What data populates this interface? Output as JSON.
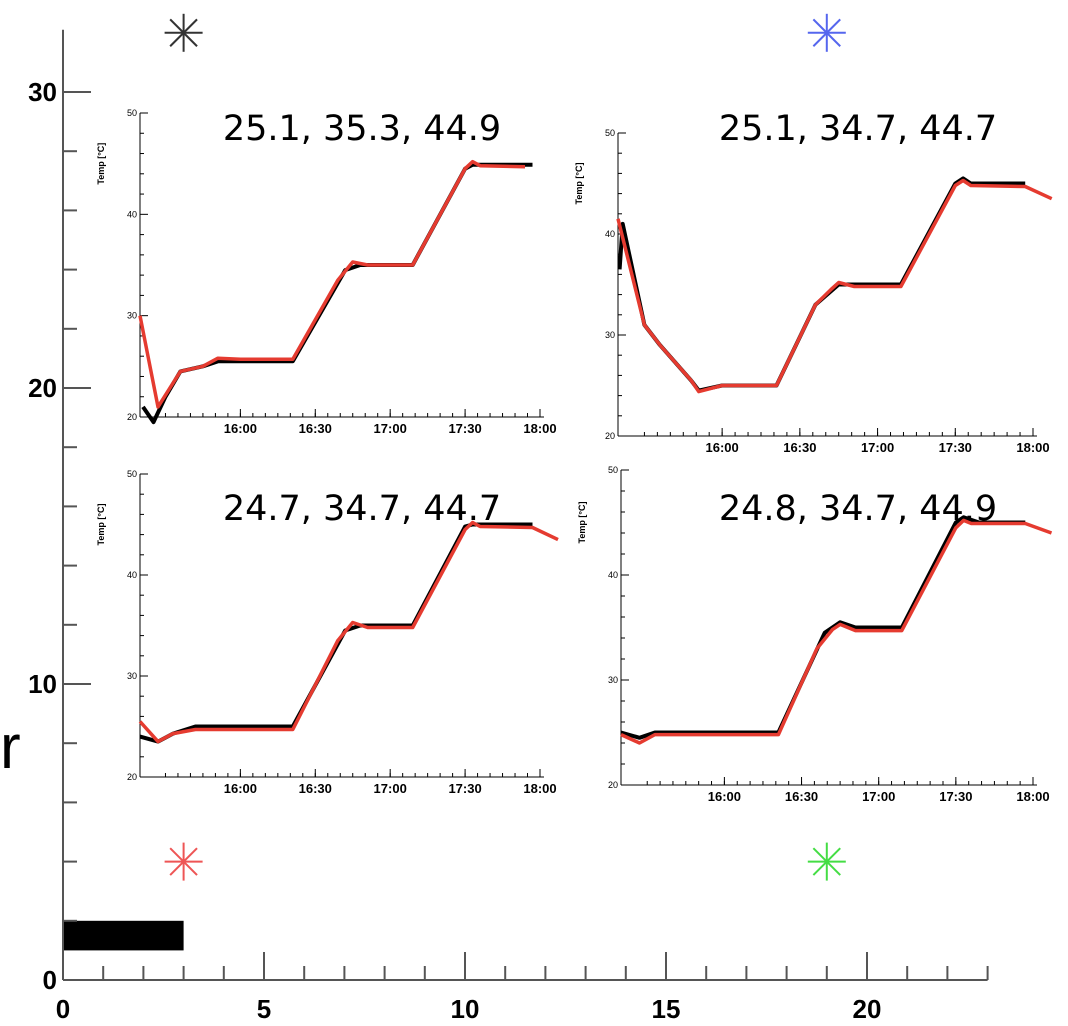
{
  "chart_data": {
    "type": "scatter",
    "xlabel": "",
    "ylabel": "r",
    "xlim": [
      0,
      23
    ],
    "ylim": [
      0,
      32
    ],
    "x_ticks": [
      "0",
      "5",
      "10",
      "15",
      "20"
    ],
    "y_ticks": [
      "0",
      "10",
      "20",
      "30"
    ],
    "markers": [
      {
        "x": 3,
        "y": 32,
        "color": "#333333",
        "symbol": "asterisk"
      },
      {
        "x": 19,
        "y": 32,
        "color": "#5566ee",
        "symbol": "asterisk"
      },
      {
        "x": 3,
        "y": 4,
        "color": "#ee5555",
        "symbol": "asterisk"
      },
      {
        "x": 19,
        "y": 4,
        "color": "#44dd44",
        "symbol": "asterisk"
      }
    ],
    "bar": {
      "x_from": 0,
      "x_to": 3,
      "y_from": 1,
      "y_to": 2,
      "color": "#000000"
    },
    "insets": [
      {
        "title": "25.1, 35.3, 44.9",
        "ylabel": "Temp [°C]",
        "ylim": [
          20,
          50
        ],
        "y_ticks": [
          "20",
          "30",
          "40",
          "50"
        ],
        "x_ticks": [
          "16:00",
          "16:30",
          "17:00",
          "17:30",
          "18:00"
        ],
        "measured": [
          [
            15.35,
            21.0
          ],
          [
            15.42,
            19.5
          ],
          [
            15.5,
            22.0
          ],
          [
            15.6,
            24.5
          ],
          [
            15.75,
            25.0
          ],
          [
            15.85,
            25.5
          ],
          [
            16.0,
            25.5
          ],
          [
            16.35,
            25.5
          ],
          [
            16.7,
            34.5
          ],
          [
            16.8,
            35.0
          ],
          [
            16.9,
            35.0
          ],
          [
            17.15,
            35.0
          ],
          [
            17.5,
            44.5
          ],
          [
            17.55,
            44.9
          ],
          [
            17.65,
            44.9
          ],
          [
            17.95,
            44.9
          ]
        ],
        "model": [
          [
            15.33,
            30.0
          ],
          [
            15.45,
            21.0
          ],
          [
            15.6,
            24.5
          ],
          [
            15.75,
            25.0
          ],
          [
            15.85,
            25.8
          ],
          [
            16.0,
            25.7
          ],
          [
            16.35,
            25.7
          ],
          [
            16.65,
            33.5
          ],
          [
            16.75,
            35.3
          ],
          [
            16.85,
            35.0
          ],
          [
            17.15,
            35.0
          ],
          [
            17.5,
            44.5
          ],
          [
            17.55,
            45.2
          ],
          [
            17.6,
            44.8
          ],
          [
            17.9,
            44.7
          ]
        ]
      },
      {
        "title": "25.1, 34.7, 44.7",
        "ylabel": "Temp [°C]",
        "ylim": [
          20,
          50
        ],
        "y_ticks": [
          "20",
          "30",
          "40",
          "50"
        ],
        "x_ticks": [
          "16:00",
          "16:30",
          "17:00",
          "17:30",
          "18:00"
        ],
        "measured": [
          [
            15.34,
            36.5
          ],
          [
            15.36,
            41.0
          ],
          [
            15.5,
            31.0
          ],
          [
            15.6,
            29.0
          ],
          [
            15.8,
            25.5
          ],
          [
            15.85,
            24.5
          ],
          [
            16.0,
            25.0
          ],
          [
            16.35,
            25.0
          ],
          [
            16.6,
            33.0
          ],
          [
            16.75,
            35.0
          ],
          [
            16.85,
            35.0
          ],
          [
            17.15,
            35.0
          ],
          [
            17.5,
            45.0
          ],
          [
            17.55,
            45.5
          ],
          [
            17.6,
            45.0
          ],
          [
            17.95,
            45.0
          ]
        ],
        "model": [
          [
            15.33,
            41.5
          ],
          [
            15.5,
            31.0
          ],
          [
            15.6,
            29.0
          ],
          [
            15.8,
            25.5
          ],
          [
            15.85,
            24.4
          ],
          [
            16.0,
            25.0
          ],
          [
            16.35,
            25.0
          ],
          [
            16.6,
            33.0
          ],
          [
            16.7,
            34.5
          ],
          [
            16.75,
            35.2
          ],
          [
            16.85,
            34.8
          ],
          [
            17.15,
            34.8
          ],
          [
            17.5,
            44.8
          ],
          [
            17.55,
            45.3
          ],
          [
            17.6,
            44.8
          ],
          [
            17.95,
            44.7
          ],
          [
            18.12,
            43.5
          ]
        ]
      },
      {
        "title": "24.7, 34.7, 44.7",
        "ylabel": "Temp [°C]",
        "ylim": [
          20,
          50
        ],
        "y_ticks": [
          "20",
          "30",
          "40",
          "50"
        ],
        "x_ticks": [
          "16:00",
          "16:30",
          "17:00",
          "17:30",
          "18:00"
        ],
        "measured": [
          [
            15.33,
            24.0
          ],
          [
            15.45,
            23.5
          ],
          [
            15.55,
            24.3
          ],
          [
            15.7,
            25.0
          ],
          [
            16.0,
            25.0
          ],
          [
            16.35,
            25.0
          ],
          [
            16.7,
            34.5
          ],
          [
            16.8,
            35.0
          ],
          [
            16.9,
            35.0
          ],
          [
            17.15,
            35.0
          ],
          [
            17.5,
            44.8
          ],
          [
            17.55,
            45.0
          ],
          [
            17.65,
            45.0
          ],
          [
            17.95,
            45.0
          ]
        ],
        "model": [
          [
            15.33,
            25.5
          ],
          [
            15.45,
            23.5
          ],
          [
            15.55,
            24.3
          ],
          [
            15.7,
            24.7
          ],
          [
            16.0,
            24.7
          ],
          [
            16.35,
            24.7
          ],
          [
            16.65,
            33.5
          ],
          [
            16.75,
            35.3
          ],
          [
            16.85,
            34.8
          ],
          [
            17.15,
            34.8
          ],
          [
            17.5,
            44.5
          ],
          [
            17.55,
            45.2
          ],
          [
            17.6,
            44.8
          ],
          [
            17.95,
            44.7
          ],
          [
            18.12,
            43.5
          ]
        ]
      },
      {
        "title": "24.8, 34.7, 44.9",
        "ylabel": "Temp [°C]",
        "ylim": [
          20,
          50
        ],
        "y_ticks": [
          "20",
          "30",
          "40",
          "50"
        ],
        "x_ticks": [
          "16:00",
          "16:30",
          "17:00",
          "17:30",
          "18:00"
        ],
        "measured": [
          [
            15.33,
            25.0
          ],
          [
            15.45,
            24.5
          ],
          [
            15.55,
            25.0
          ],
          [
            16.0,
            25.0
          ],
          [
            16.35,
            25.0
          ],
          [
            16.65,
            34.5
          ],
          [
            16.75,
            35.5
          ],
          [
            16.85,
            35.0
          ],
          [
            17.15,
            35.0
          ],
          [
            17.5,
            45.0
          ],
          [
            17.55,
            45.5
          ],
          [
            17.65,
            45.0
          ],
          [
            17.95,
            45.0
          ]
        ],
        "model": [
          [
            15.33,
            24.8
          ],
          [
            15.45,
            24.0
          ],
          [
            15.55,
            24.8
          ],
          [
            16.0,
            24.8
          ],
          [
            16.35,
            24.8
          ],
          [
            16.6,
            33.0
          ],
          [
            16.7,
            34.8
          ],
          [
            16.75,
            35.3
          ],
          [
            16.85,
            34.7
          ],
          [
            17.15,
            34.7
          ],
          [
            17.5,
            44.5
          ],
          [
            17.55,
            45.2
          ],
          [
            17.6,
            44.9
          ],
          [
            17.95,
            44.9
          ],
          [
            18.12,
            44.0
          ]
        ]
      }
    ]
  }
}
